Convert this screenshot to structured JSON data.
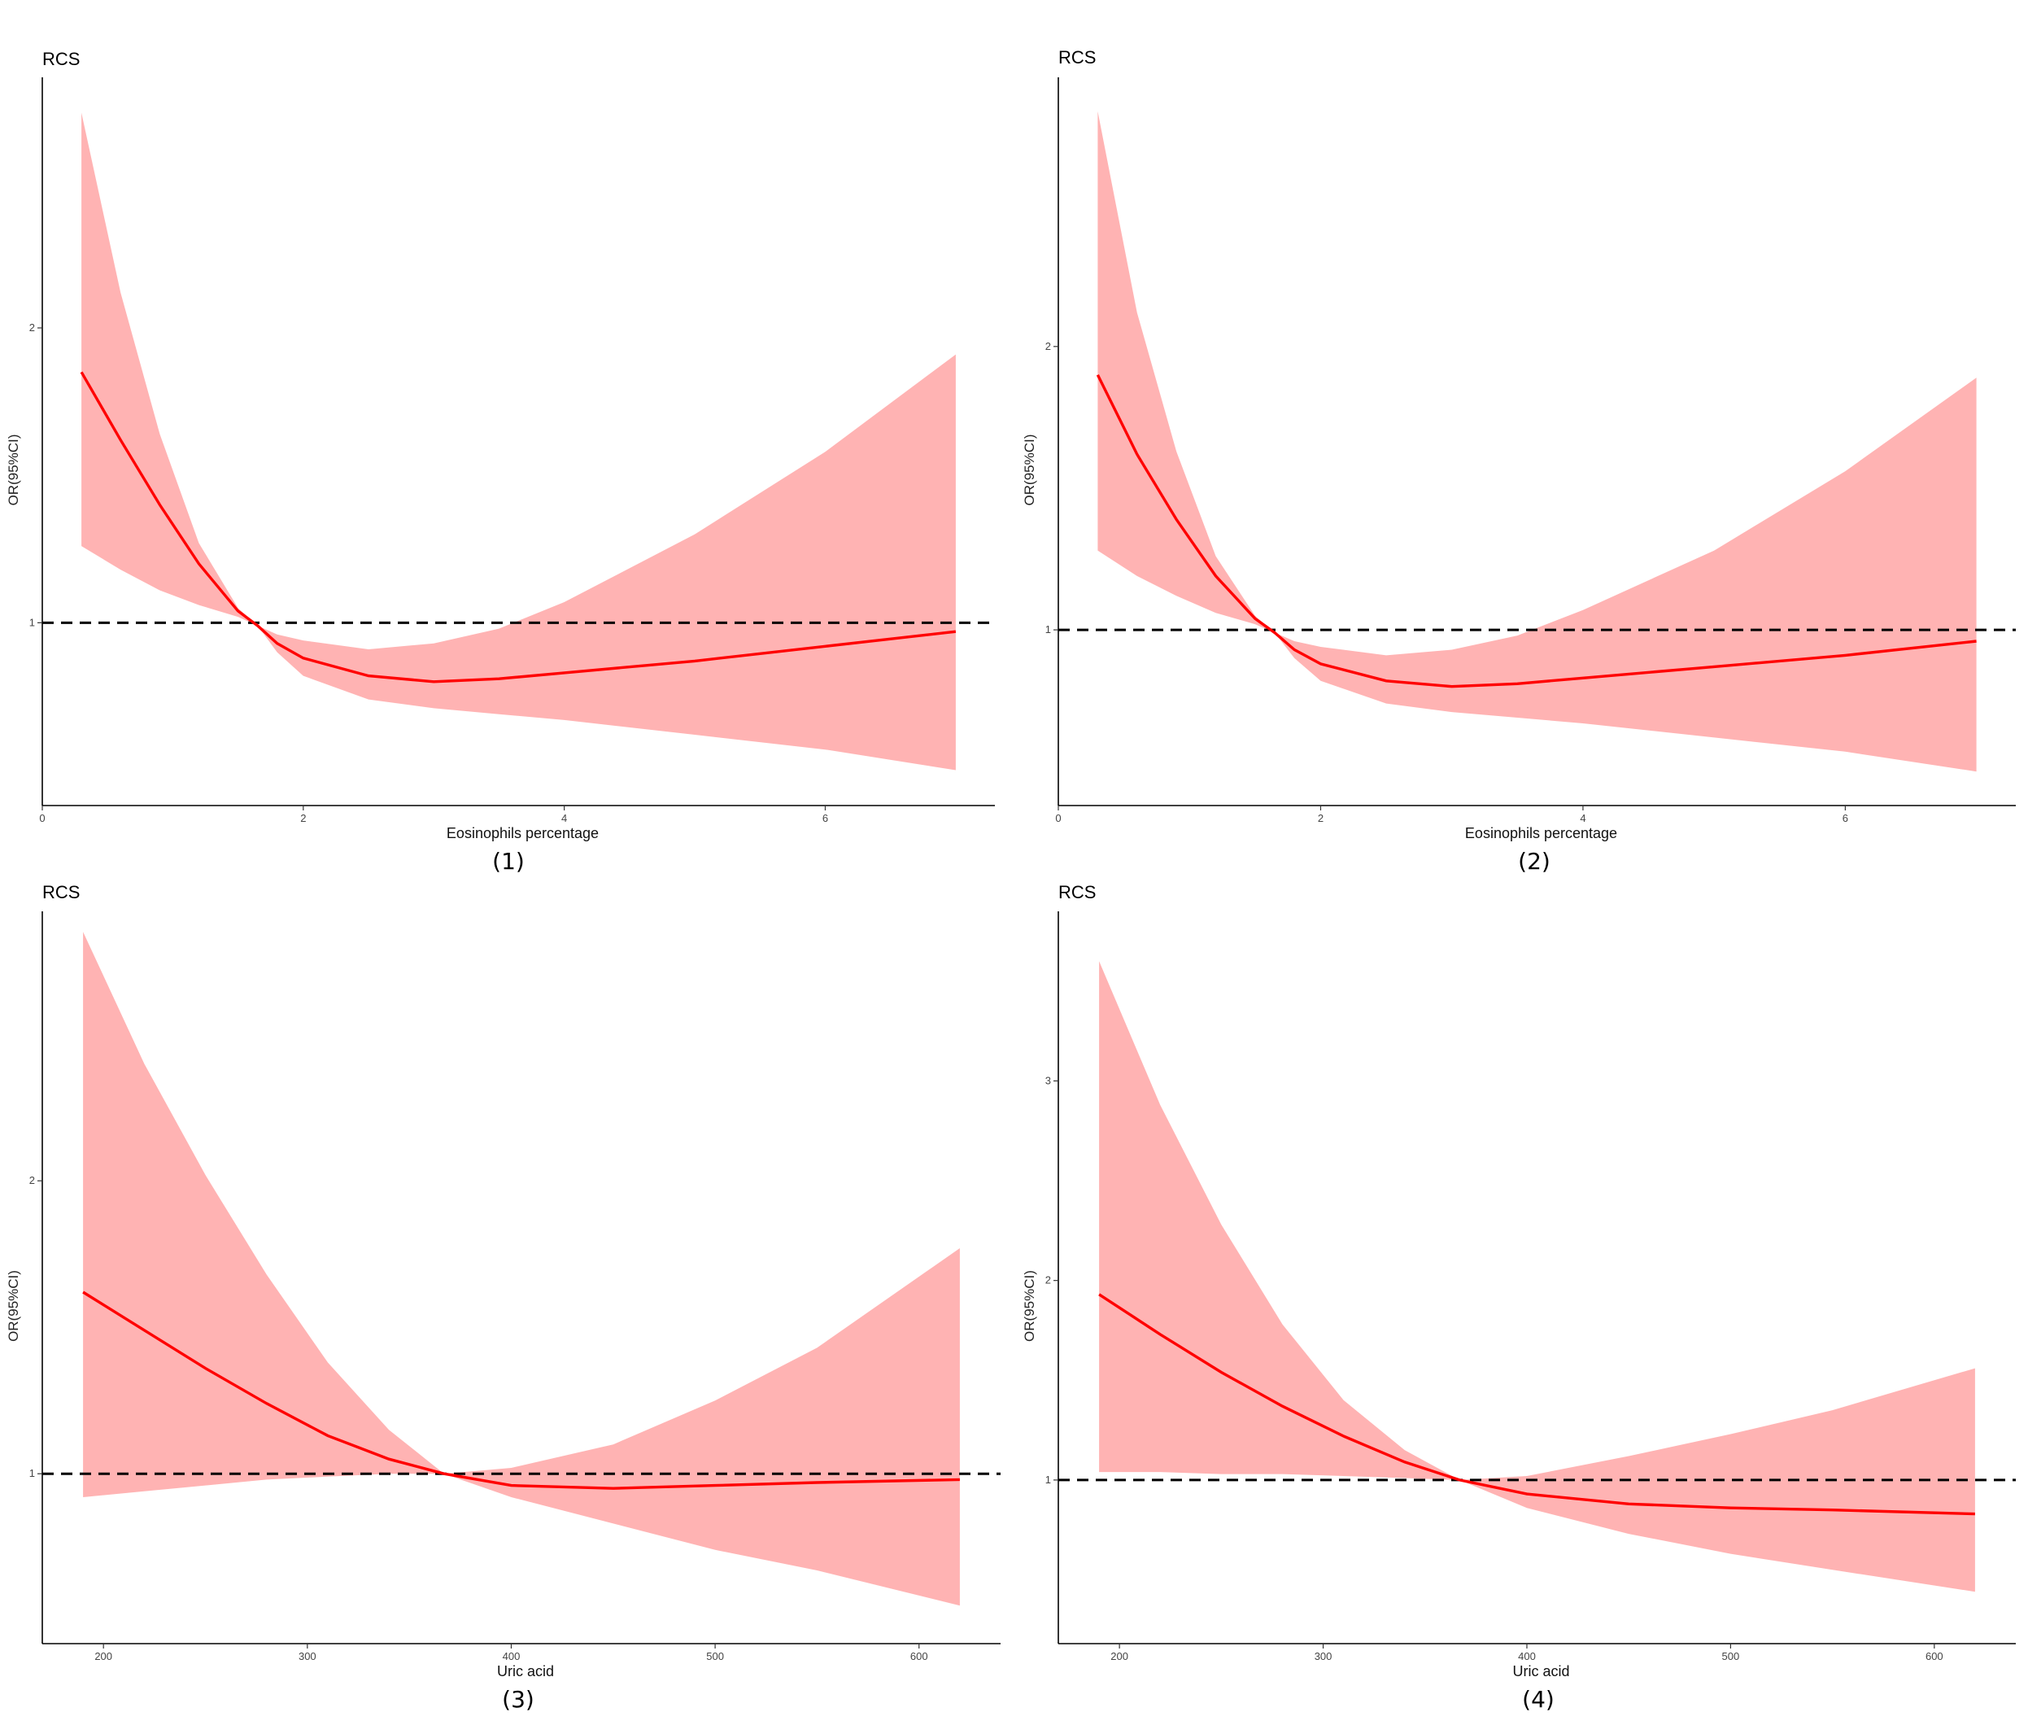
{
  "colors": {
    "band": "#ffb3b3",
    "line": "#ff0000",
    "reference": "#000000"
  },
  "chart_data": [
    {
      "type": "line",
      "title": "RCS",
      "caption": "(1)",
      "xlabel": "Eosinophils percentage",
      "ylabel": "OR(95%CI)",
      "xlim": [
        0,
        7.3
      ],
      "ylim": [
        0.38,
        2.85
      ],
      "x_ticks": [
        0,
        2,
        4,
        6
      ],
      "y_ticks": [
        1,
        2
      ],
      "reference_line": 1,
      "grid": false,
      "series": [
        {
          "role": "estimate",
          "x": [
            0.3,
            0.6,
            0.9,
            1.2,
            1.5,
            1.65,
            1.8,
            2.0,
            2.5,
            3.0,
            3.5,
            4.0,
            5.0,
            6.0,
            7.0
          ],
          "y": [
            1.85,
            1.62,
            1.4,
            1.2,
            1.04,
            0.99,
            0.93,
            0.88,
            0.82,
            0.8,
            0.81,
            0.83,
            0.87,
            0.92,
            0.97
          ]
        },
        {
          "role": "upper",
          "x": [
            0.3,
            0.6,
            0.9,
            1.2,
            1.5,
            1.65,
            1.8,
            2.0,
            2.5,
            3.0,
            3.5,
            4.0,
            5.0,
            6.0,
            7.0
          ],
          "y": [
            2.73,
            2.12,
            1.64,
            1.27,
            1.05,
            0.99,
            0.96,
            0.94,
            0.91,
            0.93,
            0.98,
            1.07,
            1.3,
            1.58,
            1.91
          ]
        },
        {
          "role": "lower",
          "x": [
            0.3,
            0.6,
            0.9,
            1.2,
            1.5,
            1.65,
            1.8,
            2.0,
            2.5,
            3.0,
            3.5,
            4.0,
            5.0,
            6.0,
            7.0
          ],
          "y": [
            1.26,
            1.18,
            1.11,
            1.06,
            1.02,
            0.99,
            0.9,
            0.82,
            0.74,
            0.71,
            0.69,
            0.67,
            0.62,
            0.57,
            0.5
          ]
        }
      ]
    },
    {
      "type": "line",
      "title": "RCS",
      "caption": "(2)",
      "xlabel": "Eosinophils percentage",
      "ylabel": "OR(95%CI)",
      "xlim": [
        0,
        7.3
      ],
      "ylim": [
        0.38,
        2.95
      ],
      "x_ticks": [
        0,
        2,
        4,
        6
      ],
      "y_ticks": [
        1,
        2
      ],
      "reference_line": 1,
      "grid": false,
      "series": [
        {
          "role": "estimate",
          "x": [
            0.3,
            0.6,
            0.9,
            1.2,
            1.5,
            1.65,
            1.8,
            2.0,
            2.5,
            3.0,
            3.5,
            4.0,
            5.0,
            6.0,
            7.0
          ],
          "y": [
            1.9,
            1.62,
            1.39,
            1.19,
            1.04,
            0.99,
            0.93,
            0.88,
            0.82,
            0.8,
            0.81,
            0.83,
            0.87,
            0.91,
            0.96
          ]
        },
        {
          "role": "upper",
          "x": [
            0.3,
            0.6,
            0.9,
            1.2,
            1.5,
            1.65,
            1.8,
            2.0,
            2.5,
            3.0,
            3.5,
            4.0,
            5.0,
            6.0,
            7.0
          ],
          "y": [
            2.83,
            2.12,
            1.63,
            1.26,
            1.05,
            0.99,
            0.96,
            0.94,
            0.91,
            0.93,
            0.98,
            1.07,
            1.28,
            1.56,
            1.89
          ]
        },
        {
          "role": "lower",
          "x": [
            0.3,
            0.6,
            0.9,
            1.2,
            1.5,
            1.65,
            1.8,
            2.0,
            2.5,
            3.0,
            3.5,
            4.0,
            5.0,
            6.0,
            7.0
          ],
          "y": [
            1.28,
            1.19,
            1.12,
            1.06,
            1.02,
            0.99,
            0.9,
            0.82,
            0.74,
            0.71,
            0.69,
            0.67,
            0.62,
            0.57,
            0.5
          ]
        }
      ]
    },
    {
      "type": "line",
      "title": "RCS",
      "caption": "(3)",
      "xlabel": "Uric acid",
      "ylabel": "OR(95%CI)",
      "xlim": [
        170,
        640
      ],
      "ylim": [
        0.42,
        2.92
      ],
      "x_ticks": [
        200,
        300,
        400,
        500,
        600
      ],
      "y_ticks": [
        1,
        2
      ],
      "reference_line": 1,
      "grid": false,
      "series": [
        {
          "role": "estimate",
          "x": [
            190,
            220,
            250,
            280,
            310,
            340,
            367,
            400,
            450,
            500,
            550,
            620
          ],
          "y": [
            1.62,
            1.49,
            1.36,
            1.24,
            1.13,
            1.05,
            1.0,
            0.96,
            0.95,
            0.96,
            0.97,
            0.98
          ]
        },
        {
          "role": "upper",
          "x": [
            190,
            220,
            250,
            280,
            310,
            340,
            367,
            400,
            450,
            500,
            550,
            620
          ],
          "y": [
            2.85,
            2.4,
            2.02,
            1.68,
            1.38,
            1.15,
            1.0,
            1.02,
            1.1,
            1.25,
            1.43,
            1.77
          ]
        },
        {
          "role": "lower",
          "x": [
            190,
            220,
            250,
            280,
            310,
            340,
            367,
            400,
            450,
            500,
            550,
            620
          ],
          "y": [
            0.92,
            0.94,
            0.96,
            0.98,
            0.99,
            1.0,
            1.0,
            0.92,
            0.83,
            0.74,
            0.67,
            0.55
          ]
        }
      ]
    },
    {
      "type": "line",
      "title": "RCS",
      "caption": "(4)",
      "xlabel": "Uric acid",
      "ylabel": "OR(95%CI)",
      "xlim": [
        170,
        640
      ],
      "ylim": [
        0.18,
        3.85
      ],
      "x_ticks": [
        200,
        300,
        400,
        500,
        600
      ],
      "y_ticks": [
        1,
        2,
        3
      ],
      "reference_line": 1,
      "grid": false,
      "series": [
        {
          "role": "estimate",
          "x": [
            190,
            220,
            250,
            280,
            310,
            340,
            367,
            400,
            450,
            500,
            550,
            620
          ],
          "y": [
            1.93,
            1.73,
            1.54,
            1.37,
            1.22,
            1.09,
            1.0,
            0.93,
            0.88,
            0.86,
            0.85,
            0.83
          ]
        },
        {
          "role": "upper",
          "x": [
            190,
            220,
            250,
            280,
            310,
            340,
            367,
            400,
            450,
            500,
            550,
            620
          ],
          "y": [
            3.6,
            2.88,
            2.28,
            1.78,
            1.4,
            1.15,
            1.0,
            1.02,
            1.12,
            1.23,
            1.35,
            1.56
          ]
        },
        {
          "role": "lower",
          "x": [
            190,
            220,
            250,
            280,
            310,
            340,
            367,
            400,
            450,
            500,
            550,
            620
          ],
          "y": [
            1.04,
            1.04,
            1.03,
            1.03,
            1.02,
            1.01,
            1.0,
            0.86,
            0.73,
            0.63,
            0.55,
            0.44
          ]
        }
      ]
    }
  ]
}
